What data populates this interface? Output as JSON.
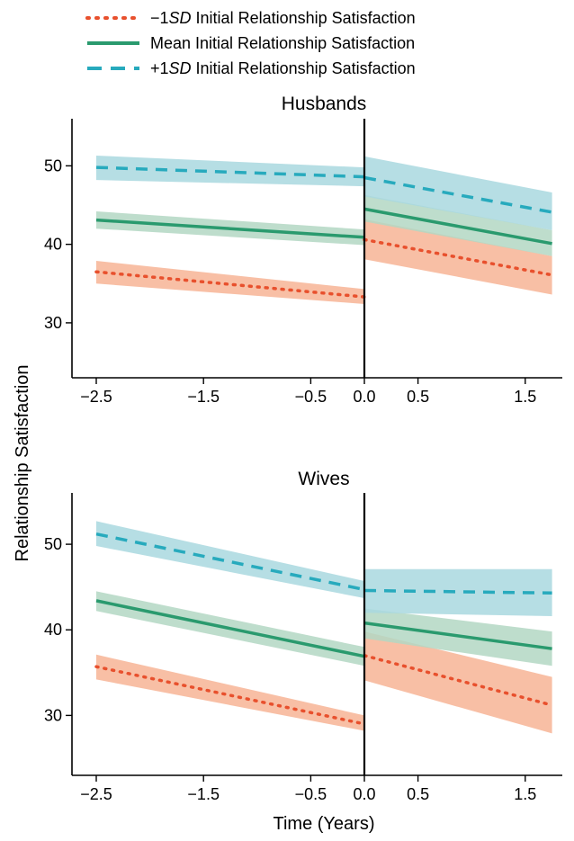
{
  "colors": {
    "low": "#e8502d",
    "mean": "#2a9a6e",
    "high": "#27aabd",
    "low_band": "#f7b495",
    "mean_band": "#b3d7c3",
    "high_band": "#a9d8df"
  },
  "legend": [
    {
      "key": "low",
      "prefix": "−1",
      "sd": "SD",
      "suffix": " Initial Relationship Satisfaction",
      "style": "dotted"
    },
    {
      "key": "mean",
      "prefix": "",
      "sd": "",
      "suffix": "Mean Initial Relationship Satisfaction",
      "style": "solid"
    },
    {
      "key": "high",
      "prefix": "+1",
      "sd": "SD",
      "suffix": " Initial Relationship Satisfaction",
      "style": "dashed"
    }
  ],
  "ylabel": "Relationship Satisfaction",
  "xlabel": "Time (Years)",
  "chart_data": [
    {
      "type": "line",
      "title": "Husbands",
      "xlim": [
        -2.5,
        1.75
      ],
      "ylim": [
        23,
        56
      ],
      "xticks": [
        -2.5,
        -1.5,
        -0.5,
        0.0,
        0.5,
        1.5
      ],
      "xtick_labels": [
        "−2.5",
        "−1.5",
        "−0.5",
        "0.0",
        "0.5",
        "1.5"
      ],
      "yticks": [
        30,
        40,
        50
      ],
      "ytick_labels": [
        "30",
        "40",
        "50"
      ],
      "series": [
        {
          "key": "low",
          "pre": {
            "x": [
              -2.5,
              0
            ],
            "y": [
              36.5,
              33.3
            ],
            "lo": [
              35.0,
              32.4
            ],
            "hi": [
              37.9,
              34.3
            ]
          },
          "post": {
            "x": [
              0,
              1.75
            ],
            "y": [
              40.6,
              36.1
            ],
            "lo": [
              38.1,
              33.6
            ],
            "hi": [
              43.2,
              38.5
            ]
          }
        },
        {
          "key": "mean",
          "pre": {
            "x": [
              -2.5,
              0
            ],
            "y": [
              43.1,
              40.9
            ],
            "lo": [
              42.0,
              39.9
            ],
            "hi": [
              44.2,
              41.9
            ]
          },
          "post": {
            "x": [
              0,
              1.75
            ],
            "y": [
              44.5,
              40.1
            ],
            "lo": [
              42.9,
              38.5
            ],
            "hi": [
              46.3,
              41.8
            ]
          }
        },
        {
          "key": "high",
          "pre": {
            "x": [
              -2.5,
              0
            ],
            "y": [
              49.8,
              48.6
            ],
            "lo": [
              48.2,
              47.4
            ],
            "hi": [
              51.3,
              49.8
            ]
          },
          "post": {
            "x": [
              0,
              1.75
            ],
            "y": [
              48.5,
              44.1
            ],
            "lo": [
              46.1,
              41.8
            ],
            "hi": [
              51.2,
              46.6
            ]
          }
        }
      ]
    },
    {
      "type": "line",
      "title": "Wives",
      "xlim": [
        -2.5,
        1.75
      ],
      "ylim": [
        23,
        56
      ],
      "xticks": [
        -2.5,
        -1.5,
        -0.5,
        0.0,
        0.5,
        1.5
      ],
      "xtick_labels": [
        "−2.5",
        "−1.5",
        "−0.5",
        "0.0",
        "0.5",
        "1.5"
      ],
      "yticks": [
        30,
        40,
        50
      ],
      "ytick_labels": [
        "30",
        "40",
        "50"
      ],
      "series": [
        {
          "key": "low",
          "pre": {
            "x": [
              -2.5,
              0
            ],
            "y": [
              35.7,
              29.0
            ],
            "lo": [
              34.2,
              28.2
            ],
            "hi": [
              37.1,
              30.0
            ]
          },
          "post": {
            "x": [
              0,
              1.75
            ],
            "y": [
              37.0,
              31.2
            ],
            "lo": [
              34.1,
              27.9
            ],
            "hi": [
              39.8,
              34.5
            ]
          }
        },
        {
          "key": "mean",
          "pre": {
            "x": [
              -2.5,
              0
            ],
            "y": [
              43.4,
              36.9
            ],
            "lo": [
              42.2,
              35.8
            ],
            "hi": [
              44.5,
              38.0
            ]
          },
          "post": {
            "x": [
              0,
              1.75
            ],
            "y": [
              40.8,
              37.8
            ],
            "lo": [
              39.0,
              35.8
            ],
            "hi": [
              42.5,
              39.8
            ]
          }
        },
        {
          "key": "high",
          "pre": {
            "x": [
              -2.5,
              0
            ],
            "y": [
              51.2,
              44.7
            ],
            "lo": [
              49.8,
              43.7
            ],
            "hi": [
              52.7,
              45.7
            ]
          },
          "post": {
            "x": [
              0,
              1.75
            ],
            "y": [
              44.6,
              44.3
            ],
            "lo": [
              42.0,
              41.6
            ],
            "hi": [
              47.1,
              47.1
            ]
          }
        }
      ]
    }
  ]
}
